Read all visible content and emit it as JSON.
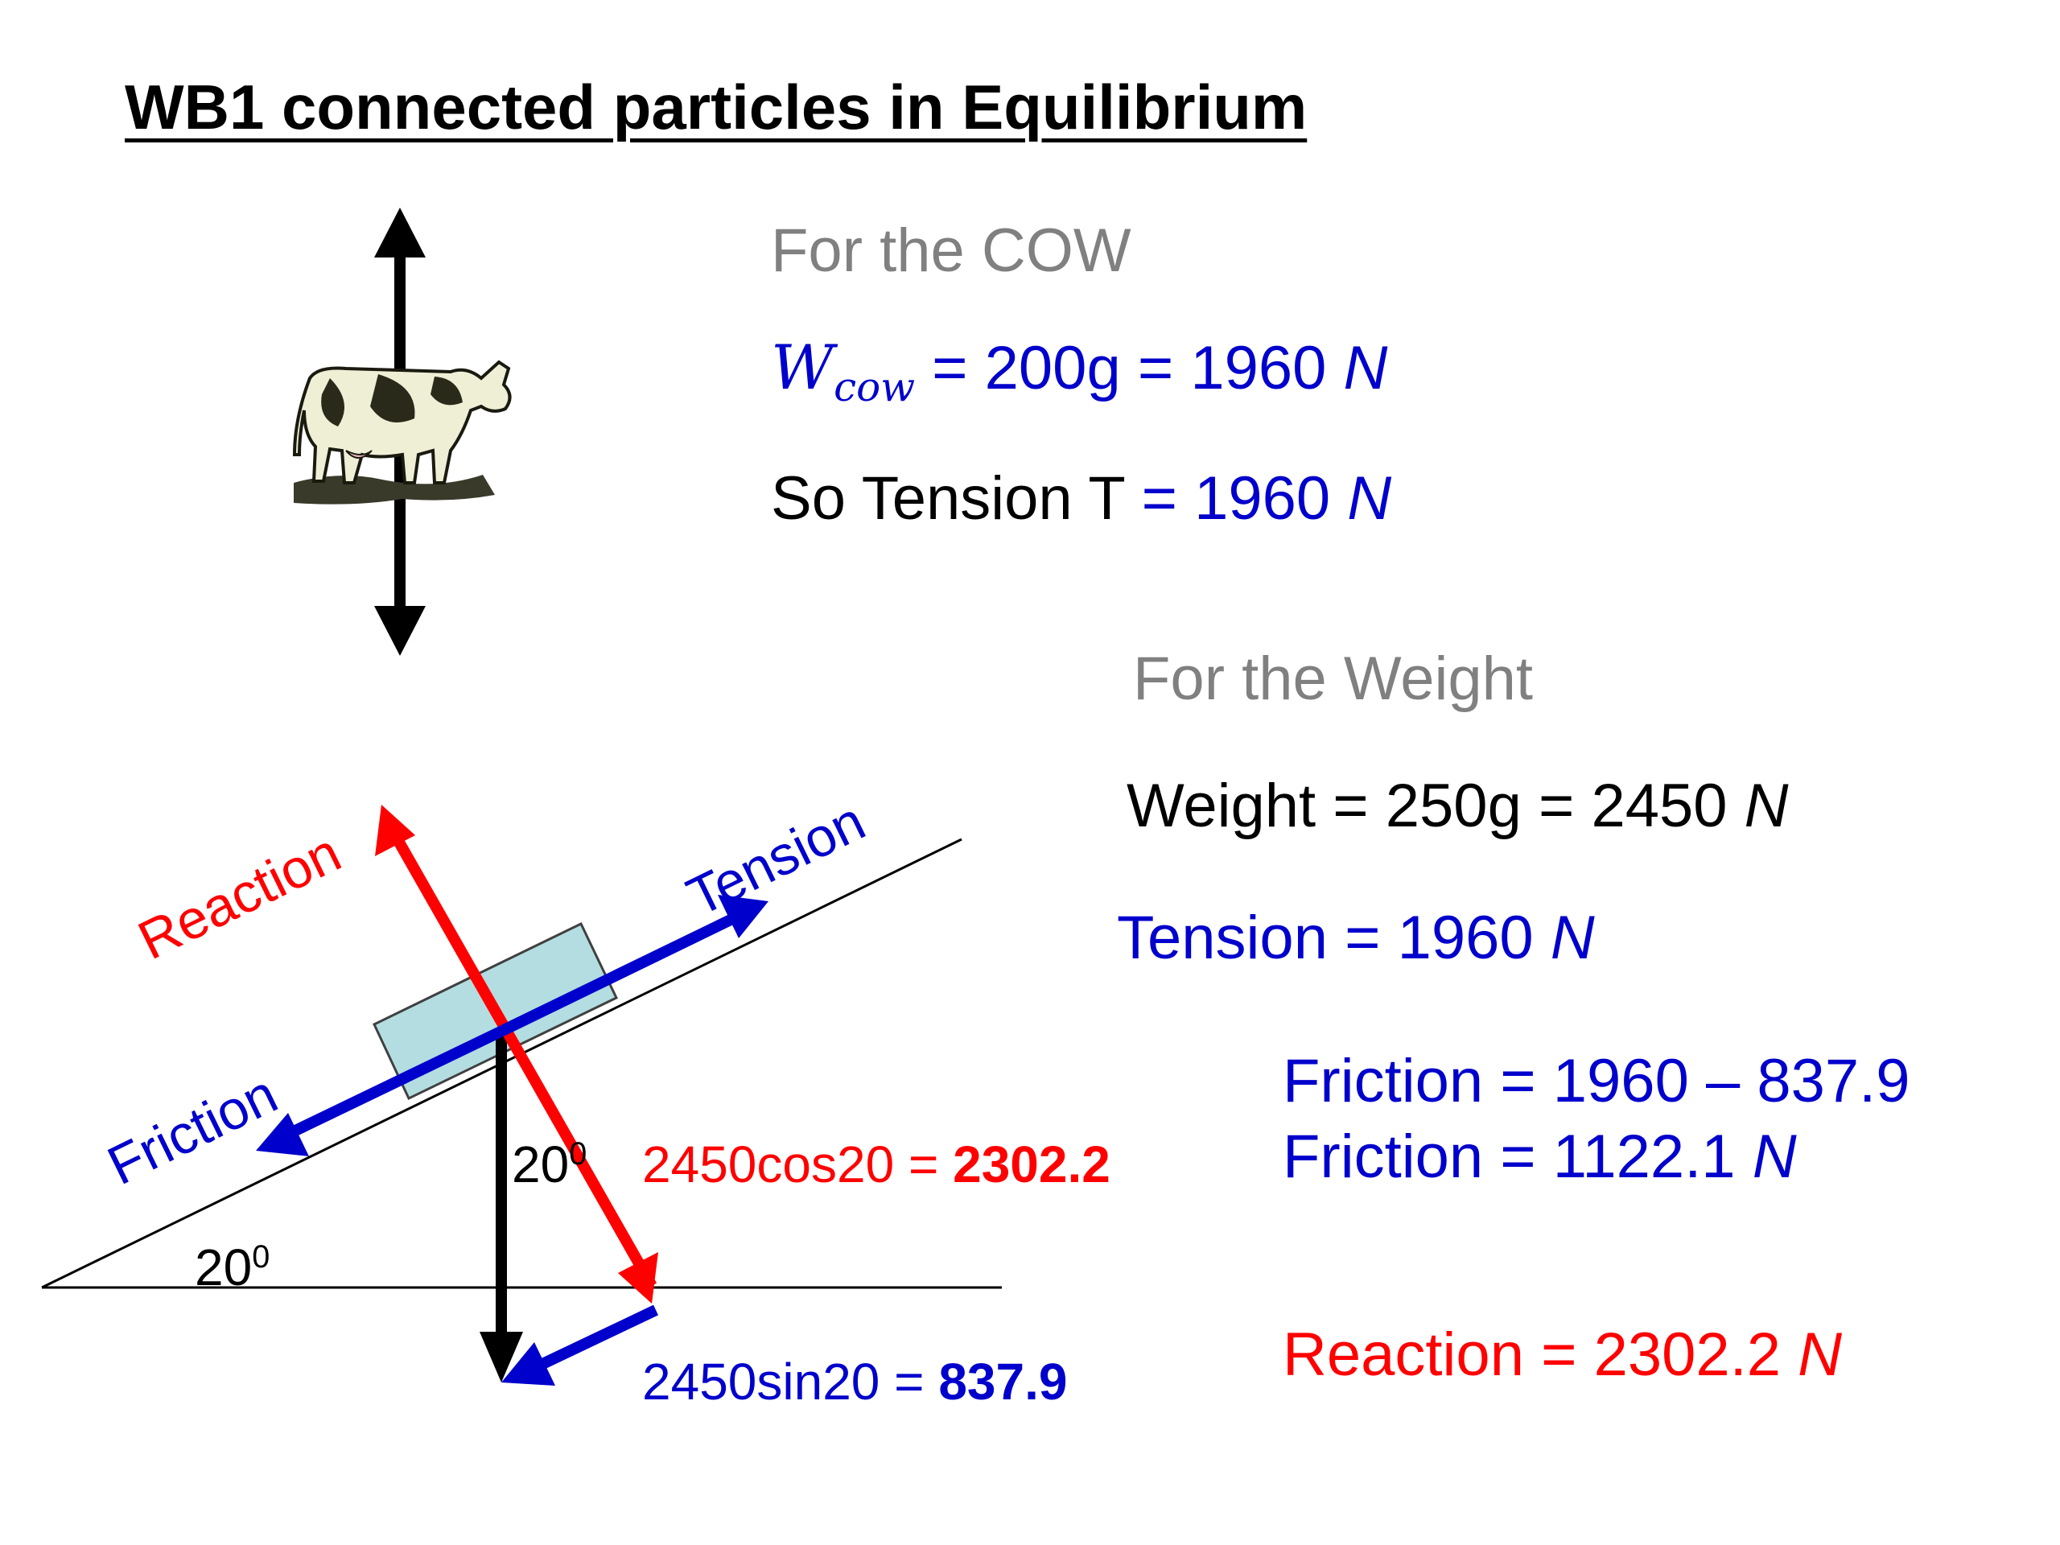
{
  "title": "WB1 connected particles in Equilibrium",
  "cow": {
    "heading": "For the COW",
    "weight_symbol": "W",
    "weight_subscript": "cow",
    "weight_rest": " = 200g = 1960 ",
    "unit": "N",
    "tension_prefix": "So Tension T",
    "tension_rest": " = 1960 "
  },
  "weight_section": {
    "heading": "For the Weight",
    "weight_line": "Weight = 250g = 2450 ",
    "tension_line": "Tension = 1960 ",
    "friction_line1": "Friction = 1960 – 837.9",
    "friction_line2": "Friction = 1122.1 ",
    "reaction_line": "Reaction = 2302.2 ",
    "unit": "N"
  },
  "diagram": {
    "labels": {
      "reaction": "Reaction",
      "tension": "Tension",
      "friction": "Friction"
    },
    "angle_between": "20",
    "angle_incline": "20",
    "degree_mark": "0",
    "cos_expr": "2450cos20 = ",
    "cos_value": "2302.2",
    "sin_expr": "2450sin20 = ",
    "sin_value": "837.9",
    "colors": {
      "reaction": "#ff0000",
      "tension": "#0000cc",
      "friction": "#0000cc",
      "weight": "#000000",
      "block": "#b3dde1"
    }
  }
}
